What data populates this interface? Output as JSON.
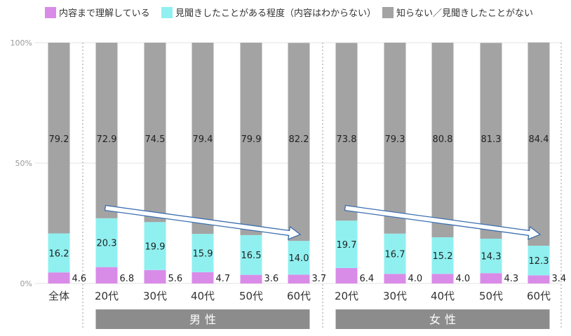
{
  "chart_data": {
    "type": "bar",
    "stacked": true,
    "legend": [
      {
        "name": "内容まで理解している",
        "color": "#d98be8"
      },
      {
        "name": "見聞きしたことがある程度（内容はわからない）",
        "color": "#90f0f0"
      },
      {
        "name": "知らない／見聞きしたことがない",
        "color": "#a3a3a3"
      }
    ],
    "legend_position": "top",
    "ylim": [
      0,
      100
    ],
    "yticks": [
      "0%",
      "50%",
      "100%"
    ],
    "categories": [
      "全体",
      "20代",
      "30代",
      "40代",
      "50代",
      "60代",
      "20代",
      "30代",
      "40代",
      "50代",
      "60代"
    ],
    "groups": [
      {
        "label": "男性",
        "categories": [
          1,
          5
        ]
      },
      {
        "label": "女性",
        "categories": [
          6,
          10
        ]
      }
    ],
    "series": [
      {
        "name": "内容まで理解している",
        "values": [
          4.6,
          6.8,
          5.6,
          4.7,
          3.6,
          3.7,
          6.4,
          4.0,
          4.0,
          4.3,
          3.4
        ]
      },
      {
        "name": "見聞きしたことがある程度（内容はわからない）",
        "values": [
          16.2,
          20.3,
          19.9,
          15.9,
          16.5,
          14.0,
          19.7,
          16.7,
          15.2,
          14.3,
          12.3
        ]
      },
      {
        "name": "知らない／見聞きしたことがない",
        "values": [
          79.2,
          72.9,
          74.5,
          79.4,
          79.9,
          82.2,
          73.8,
          79.3,
          80.8,
          81.3,
          84.4
        ]
      }
    ],
    "value_labels": {
      "s0": [
        "4.6",
        "6.8",
        "5.6",
        "4.7",
        "3.6",
        "3.7",
        "6.4",
        "4.0",
        "4.0",
        "4.3",
        "3.4"
      ],
      "s1": [
        "16.2",
        "20.3",
        "19.9",
        "15.9",
        "16.5",
        "14.0",
        "19.7",
        "16.7",
        "15.2",
        "14.3",
        "12.3"
      ],
      "s2": [
        "79.2",
        "72.9",
        "74.5",
        "79.4",
        "79.9",
        "82.2",
        "73.8",
        "79.3",
        "80.8",
        "81.3",
        "84.4"
      ]
    },
    "annotations": [
      {
        "type": "trend-arrow",
        "from_category": 1,
        "to_category": 5
      },
      {
        "type": "trend-arrow",
        "from_category": 6,
        "to_category": 10
      }
    ],
    "grid": true
  }
}
